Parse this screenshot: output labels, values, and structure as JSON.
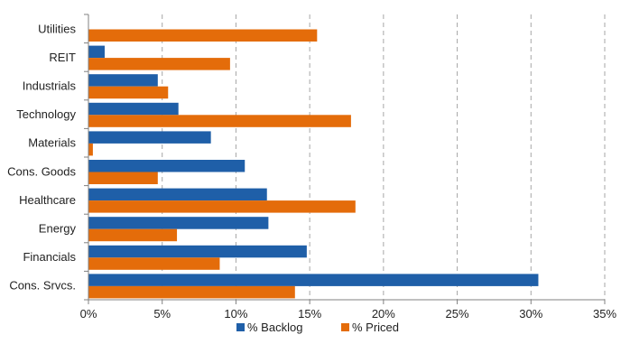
{
  "chart_data": {
    "type": "bar",
    "orientation": "horizontal",
    "title": "",
    "xlabel": "",
    "ylabel": "",
    "categories": [
      "Utilities",
      "REIT",
      "Industrials",
      "Technology",
      "Materials",
      "Cons. Goods",
      "Healthcare",
      "Energy",
      "Financials",
      "Cons. Srvcs."
    ],
    "series": [
      {
        "name": "% Backlog",
        "color": "#1f5fa8",
        "values": [
          0.0,
          1.1,
          4.7,
          6.1,
          8.3,
          10.6,
          12.1,
          12.2,
          14.8,
          30.5
        ]
      },
      {
        "name": "% Priced",
        "color": "#e46c0a",
        "values": [
          15.5,
          9.6,
          5.4,
          17.8,
          0.3,
          4.7,
          18.1,
          6.0,
          8.9,
          14.0
        ]
      }
    ],
    "xlim": [
      0,
      35
    ],
    "xticks": [
      0,
      5,
      10,
      15,
      20,
      25,
      30,
      35
    ],
    "xtick_labels": [
      "0%",
      "5%",
      "10%",
      "15%",
      "20%",
      "25%",
      "30%",
      "35%"
    ],
    "grid": "vertical-dashed",
    "legend": "bottom-center"
  }
}
